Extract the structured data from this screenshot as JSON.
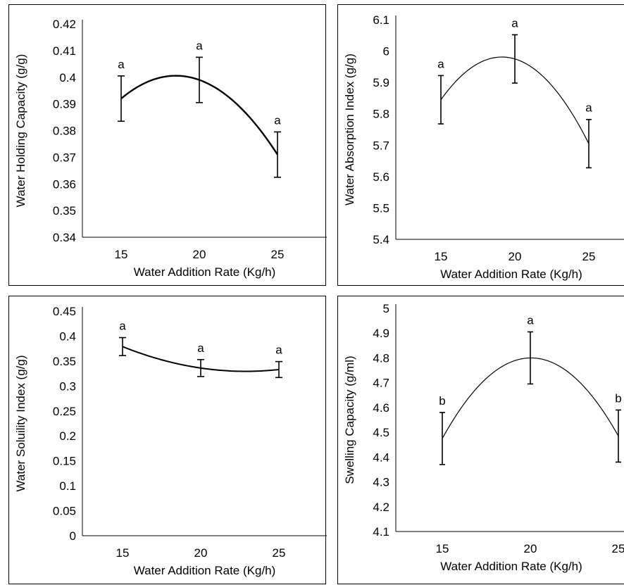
{
  "chart_data": [
    {
      "type": "line",
      "xlabel": "Water Addition Rate (Kg/h)",
      "ylabel": "Water Holding Capacity (g/g)",
      "ylim": [
        0.34,
        0.42
      ],
      "yticks": [
        "0.34",
        "0.35",
        "0.36",
        "0.37",
        "0.38",
        "0.39",
        "0.4",
        "0.41",
        "0.42"
      ],
      "xticks": [
        "15",
        "20",
        "25"
      ],
      "x": [
        15,
        20,
        25
      ],
      "values": [
        0.392,
        0.399,
        0.371
      ],
      "error": [
        0.0085,
        0.0085,
        0.0085
      ],
      "letters": [
        "a",
        "a",
        "a"
      ],
      "curve": "quadratic",
      "grid": false
    },
    {
      "type": "line",
      "xlabel": "Water Addition Rate (Kg/h)",
      "ylabel": "Water Absorption Index (g/g)",
      "ylim": [
        5.4,
        6.1
      ],
      "yticks": [
        "5.4",
        "5.5",
        "5.6",
        "5.7",
        "5.8",
        "5.9",
        "6",
        "6.1"
      ],
      "xticks": [
        "15",
        "20",
        "25"
      ],
      "x": [
        15,
        20,
        25
      ],
      "values": [
        5.845,
        5.975,
        5.705
      ],
      "error": [
        0.077,
        0.077,
        0.077
      ],
      "letters": [
        "a",
        "a",
        "a"
      ],
      "curve": "quadratic",
      "grid": false
    },
    {
      "type": "line",
      "xlabel": "Water Addition Rate (Kg/h)",
      "ylabel": "Water Soluility Index (g/g)",
      "ylim": [
        0,
        0.45
      ],
      "yticks": [
        "0",
        "0.05",
        "0.1",
        "0.15",
        "0.2",
        "0.25",
        "0.3",
        "0.35",
        "0.4",
        "0.45"
      ],
      "xticks": [
        "15",
        "20",
        "25"
      ],
      "x": [
        15,
        20,
        25
      ],
      "values": [
        0.379,
        0.336,
        0.333
      ],
      "error": [
        0.018,
        0.017,
        0.016
      ],
      "letters": [
        "a",
        "a",
        "a"
      ],
      "curve": "quadratic",
      "grid": false
    },
    {
      "type": "line",
      "xlabel": "Water Addition Rate (Kg/h)",
      "ylabel": "Swelling Capacity (g/ml)",
      "ylim": [
        4.1,
        5.0
      ],
      "yticks": [
        "4.1",
        "4.2",
        "4.3",
        "4.4",
        "4.5",
        "4.6",
        "4.7",
        "4.8",
        "4.9",
        "5"
      ],
      "xticks": [
        "15",
        "20",
        "25"
      ],
      "x": [
        15,
        20,
        25
      ],
      "values": [
        4.475,
        4.8,
        4.485
      ],
      "error": [
        0.105,
        0.105,
        0.105
      ],
      "letters": [
        "b",
        "a",
        "b"
      ],
      "curve": "quadratic",
      "grid": false
    }
  ]
}
